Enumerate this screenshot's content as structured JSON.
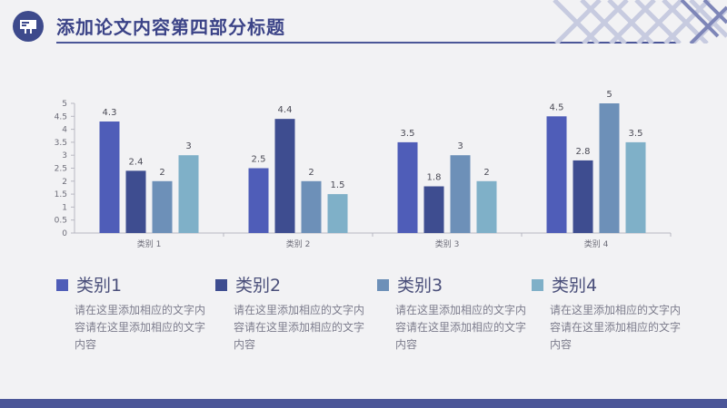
{
  "header": {
    "title": "添加论文内容第四部分标题",
    "icon": "presentation-board-icon"
  },
  "colors": {
    "series": [
      "#4f5db8",
      "#3e4d90",
      "#6d90b8",
      "#7fb0c8"
    ],
    "accent": "#4b5698"
  },
  "chart_data": {
    "type": "bar",
    "categories": [
      "类别 1",
      "类别 2",
      "类别 3",
      "类别 4"
    ],
    "series": [
      {
        "values": [
          4.3,
          2.5,
          3.5,
          4.5
        ]
      },
      {
        "values": [
          2.4,
          4.4,
          1.8,
          2.8
        ]
      },
      {
        "values": [
          2,
          2,
          3,
          5
        ]
      },
      {
        "values": [
          3,
          1.5,
          2,
          3.5
        ]
      }
    ],
    "data_labels": [
      [
        "4.3",
        "2.5",
        "3.5",
        "4.5"
      ],
      [
        "2.4",
        "4.4",
        "1.8",
        "2.8"
      ],
      [
        "2",
        "2",
        "3",
        "5"
      ],
      [
        "3",
        "1.5",
        "2",
        "3.5"
      ]
    ],
    "yticks": [
      "0",
      "0.5",
      "1",
      "1.5",
      "2",
      "2.5",
      "3",
      "3.5",
      "4",
      "4.5",
      "5"
    ],
    "ylim": [
      0,
      5
    ],
    "grid": false,
    "legend": "bottom"
  },
  "legend": [
    {
      "label": "类别1",
      "desc": "请在这里添加相应的文字内容请在这里添加相应的文字内容"
    },
    {
      "label": "类别2",
      "desc": "请在这里添加相应的文字内容请在这里添加相应的文字内容"
    },
    {
      "label": "类别3",
      "desc": "请在这里添加相应的文字内容请在这里添加相应的文字内容"
    },
    {
      "label": "类别4",
      "desc": "请在这里添加相应的文字内容请在这里添加相应的文字内容"
    }
  ]
}
